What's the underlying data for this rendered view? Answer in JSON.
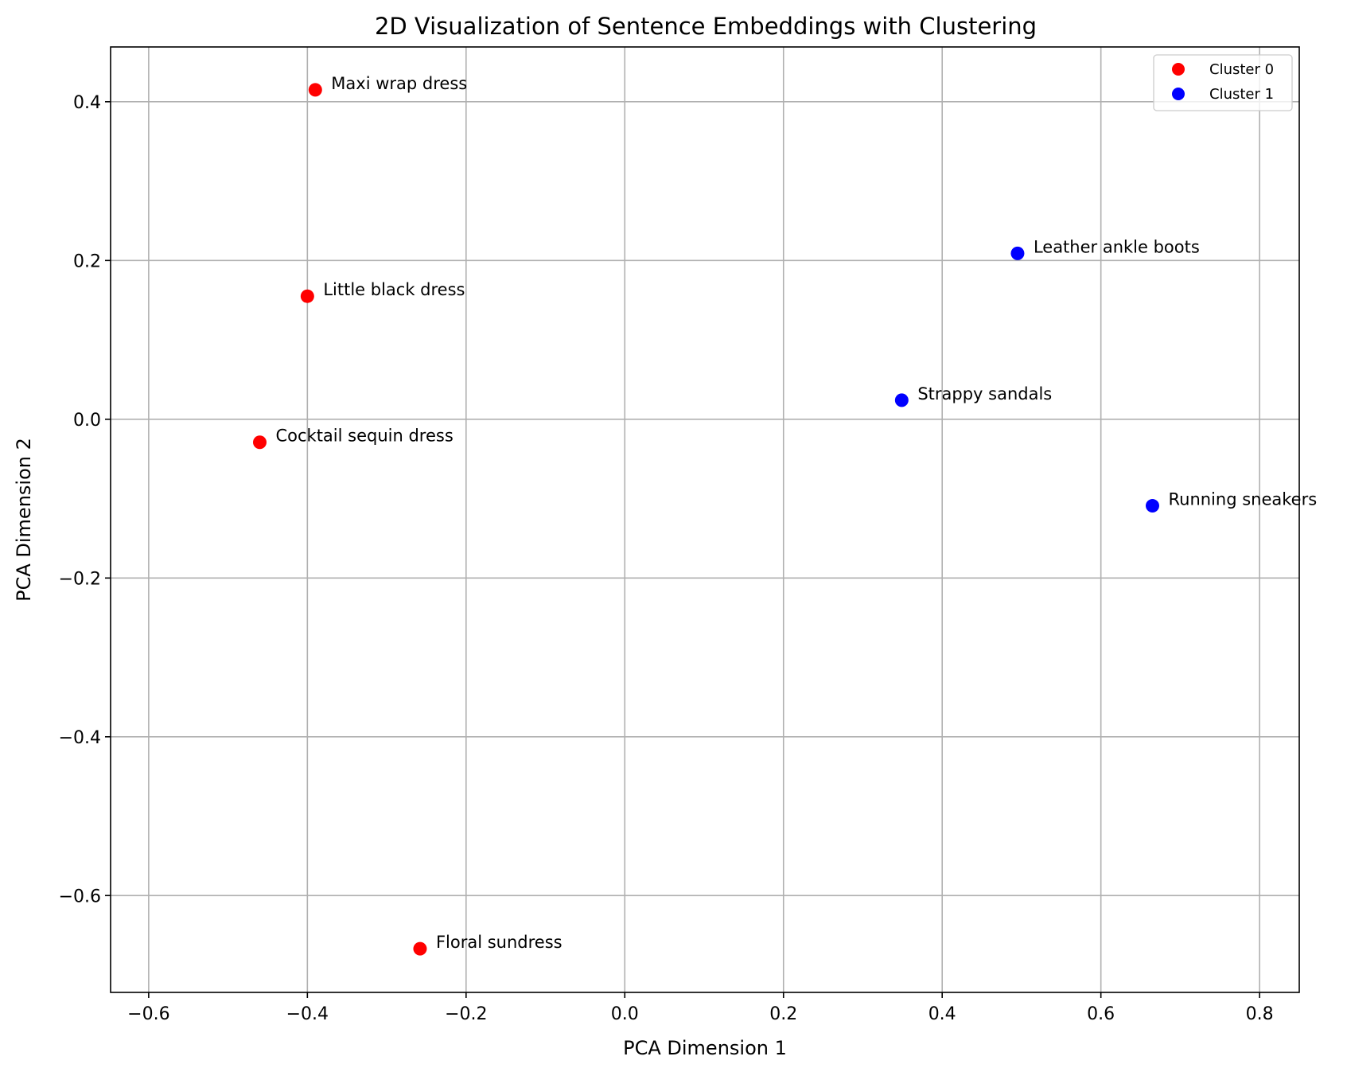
{
  "chart_data": {
    "type": "scatter",
    "title": "2D Visualization of Sentence Embeddings with Clustering",
    "xlabel": "PCA Dimension 1",
    "ylabel": "PCA Dimension 2",
    "xlim": [
      -0.648,
      0.85
    ],
    "ylim": [
      -0.722,
      0.469
    ],
    "xticks": [
      -0.6,
      -0.4,
      -0.2,
      0.0,
      0.2,
      0.4,
      0.6,
      0.8
    ],
    "xtick_labels": [
      "−0.6",
      "−0.4",
      "−0.2",
      "0.0",
      "0.2",
      "0.4",
      "0.6",
      "0.8"
    ],
    "yticks": [
      -0.6,
      -0.4,
      -0.2,
      0.0,
      0.2,
      0.4
    ],
    "ytick_labels": [
      "−0.6",
      "−0.4",
      "−0.2",
      "0.0",
      "0.2",
      "0.4"
    ],
    "grid": true,
    "legend_position": "top-right",
    "series": [
      {
        "name": "Cluster 0",
        "color": "#ff0000",
        "points": [
          {
            "x": -0.39,
            "y": 0.415,
            "label": "Maxi wrap dress"
          },
          {
            "x": -0.4,
            "y": 0.155,
            "label": "Little black dress"
          },
          {
            "x": -0.46,
            "y": -0.029,
            "label": "Cocktail sequin dress"
          },
          {
            "x": -0.258,
            "y": -0.667,
            "label": "Floral sundress"
          }
        ]
      },
      {
        "name": "Cluster 1",
        "color": "#0000ff",
        "points": [
          {
            "x": 0.495,
            "y": 0.209,
            "label": "Leather ankle boots"
          },
          {
            "x": 0.349,
            "y": 0.024,
            "label": "Strappy sandals"
          },
          {
            "x": 0.665,
            "y": -0.109,
            "label": "Running sneakers"
          }
        ]
      }
    ]
  }
}
